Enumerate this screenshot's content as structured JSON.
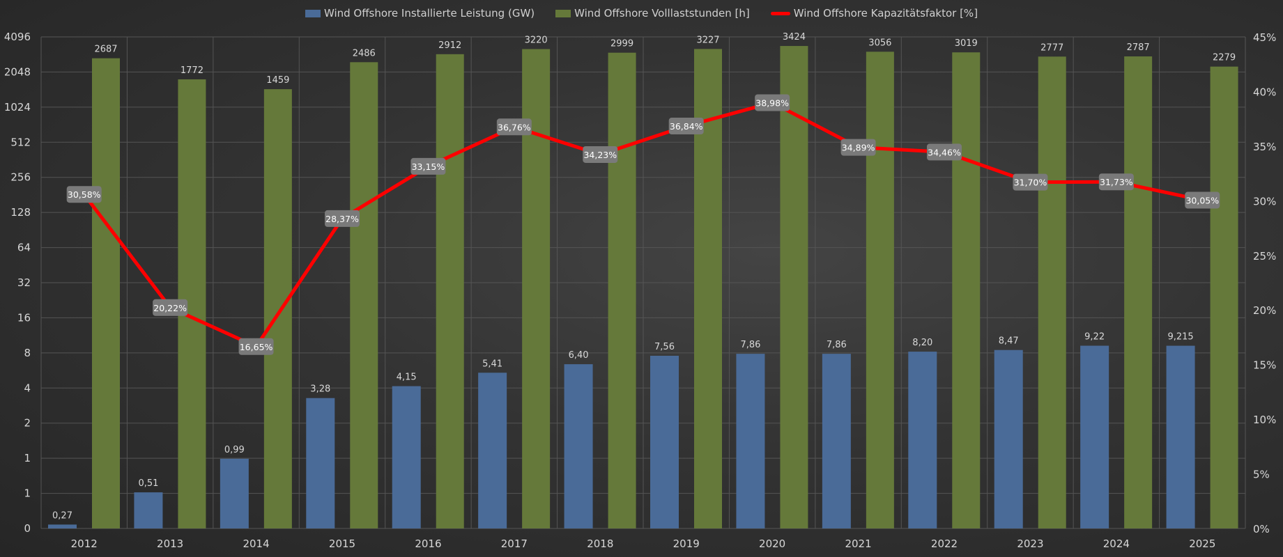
{
  "chart_data": {
    "type": "bar",
    "categories": [
      "2012",
      "2013",
      "2014",
      "2015",
      "2016",
      "2017",
      "2018",
      "2019",
      "2020",
      "2021",
      "2022",
      "2023",
      "2024",
      "2025"
    ],
    "series": [
      {
        "name": "Wind Offshore Installierte Leistung (GW)",
        "type": "bar",
        "axis": "left",
        "color": "#4a6b98",
        "values": [
          0.27,
          0.51,
          0.99,
          3.28,
          4.15,
          5.41,
          6.4,
          7.56,
          7.86,
          7.86,
          8.2,
          8.47,
          9.22,
          9.215
        ],
        "labels": [
          "0,27",
          "0,51",
          "0,99",
          "3,28",
          "4,15",
          "5,41",
          "6,40",
          "7,56",
          "7,86",
          "7,86",
          "8,20",
          "8,47",
          "9,22",
          "9,215"
        ]
      },
      {
        "name": "Wind Offshore Volllaststunden [h]",
        "type": "bar",
        "axis": "left",
        "color": "#65793a",
        "values": [
          2687,
          1772,
          1459,
          2486,
          2912,
          3220,
          2999,
          3227,
          3424,
          3056,
          3019,
          2777,
          2787,
          2279
        ],
        "labels": [
          "2687",
          "1772",
          "1459",
          "2486",
          "2912",
          "3220",
          "2999",
          "3227",
          "3424",
          "3056",
          "3019",
          "2777",
          "2787",
          "2279"
        ]
      },
      {
        "name": "Wind Offshore Kapazitätsfaktor [%]",
        "type": "line",
        "axis": "right",
        "color": "#ff0000",
        "values": [
          30.58,
          20.22,
          16.65,
          28.37,
          33.15,
          36.76,
          34.23,
          36.84,
          38.98,
          34.89,
          34.46,
          31.7,
          31.73,
          30.05
        ],
        "labels": [
          "30,58%",
          "20,22%",
          "16,65%",
          "28,37%",
          "33,15%",
          "36,76%",
          "34,23%",
          "36,84%",
          "38,98%",
          "34,89%",
          "34,46%",
          "31,70%",
          "31,73%",
          "30,05%"
        ]
      }
    ],
    "left_axis": {
      "scale": "log2",
      "ylim": [
        0.25,
        4096
      ],
      "ticks": [
        0.25,
        0.5,
        1,
        2,
        4,
        8,
        16,
        32,
        64,
        128,
        256,
        512,
        1024,
        2048,
        4096
      ],
      "tick_labels": [
        "0",
        "1",
        "1",
        "2",
        "4",
        "8",
        "16",
        "32",
        "64",
        "128",
        "256",
        "512",
        "1024",
        "2048",
        "4096"
      ]
    },
    "right_axis": {
      "ylim": [
        0,
        45
      ],
      "ticks": [
        0,
        5,
        10,
        15,
        20,
        25,
        30,
        35,
        40,
        45
      ],
      "tick_labels": [
        "0%",
        "5%",
        "10%",
        "15%",
        "20%",
        "25%",
        "30%",
        "35%",
        "40%",
        "45%"
      ]
    },
    "legend": "top-center",
    "grid": true,
    "title": "",
    "xlabel": "",
    "ylabel": ""
  }
}
